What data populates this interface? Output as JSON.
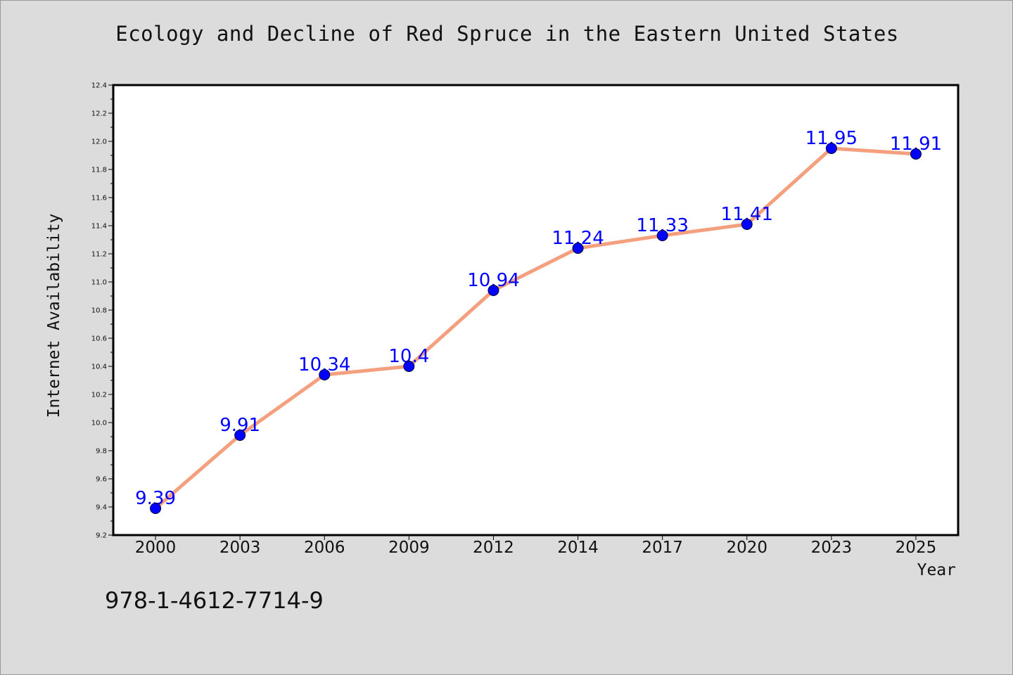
{
  "chart_data": {
    "type": "line",
    "title": "Ecology and Decline of Red Spruce in the Eastern United States",
    "xlabel": "Year",
    "ylabel": "Internet Availability",
    "categories": [
      "2000",
      "2003",
      "2006",
      "2009",
      "2012",
      "2014",
      "2017",
      "2020",
      "2023",
      "2025"
    ],
    "values": [
      9.39,
      9.91,
      10.34,
      10.4,
      10.94,
      11.24,
      11.33,
      11.41,
      11.95,
      11.91
    ],
    "data_labels": [
      "9.39",
      "9.91",
      "10.34",
      "10.4",
      "10.94",
      "11.24",
      "11.33",
      "11.41",
      "11.95",
      "11.91"
    ],
    "ylim": [
      9.2,
      12.4
    ],
    "y_ticks": [
      "9.2",
      "9.4",
      "9.6",
      "9.8",
      "10.0",
      "10.2",
      "10.4",
      "10.6",
      "10.8",
      "11.0",
      "11.2",
      "11.4",
      "11.6",
      "11.8",
      "12.0",
      "12.2",
      "12.4"
    ],
    "grid": false,
    "legend": "none",
    "colors": {
      "line": "#f4a07e",
      "marker": "#0000ff",
      "data_label": "#0000ff",
      "background": "#dcdcdc",
      "plot_background": "#ffffff"
    }
  },
  "footer_text": "978-1-4612-7714-9"
}
